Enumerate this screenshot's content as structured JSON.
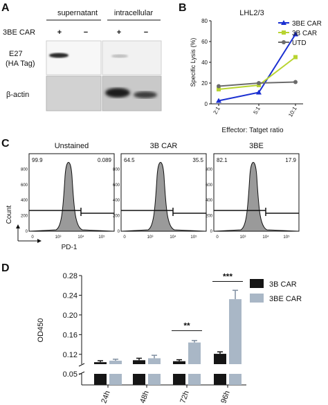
{
  "panels": {
    "a": {
      "letter": "A",
      "col_headers": [
        "supernatant",
        "intracellular"
      ],
      "row_label": "3BE CAR",
      "signs": [
        "+",
        "−",
        "+",
        "−"
      ],
      "blot1_label_line1": "E27",
      "blot1_label_line2": "(HA Tag)",
      "blot2_label": "β-actin"
    },
    "b": {
      "letter": "B"
    },
    "c": {
      "letter": "C"
    },
    "d": {
      "letter": "D"
    }
  },
  "chart_data": [
    {
      "type": "line",
      "title": "LHL2/3",
      "xlabel": "Effector: Tatget ratio",
      "ylabel": "Specific Lysis (%)",
      "categories": [
        "2:1",
        "5:1",
        "10:1"
      ],
      "ylim": [
        0,
        80
      ],
      "yticks": [
        0,
        20,
        40,
        60,
        80
      ],
      "legend_position": "top-right",
      "series": [
        {
          "name": "3BE CAR",
          "color": "#1a2fd1",
          "marker": "triangle",
          "values": [
            3,
            11,
            67
          ]
        },
        {
          "name": "3B CAR",
          "color": "#b8d430",
          "marker": "square",
          "values": [
            14,
            18,
            45
          ]
        },
        {
          "name": "UTD",
          "color": "#6b6b6b",
          "marker": "circle",
          "values": [
            17,
            20,
            21
          ]
        }
      ]
    },
    {
      "type": "histogram",
      "xlabel": "PD-1",
      "ylabel": "Count",
      "yticks": [
        0,
        200,
        400,
        600,
        800
      ],
      "xticks": [
        "0",
        "10³",
        "10⁴",
        "10⁵"
      ],
      "panels": [
        {
          "title": "Unstained",
          "left_pct": "99.9",
          "right_pct": "0.089"
        },
        {
          "title": "3B CAR",
          "left_pct": "64.5",
          "right_pct": "35.5"
        },
        {
          "title": "3BE",
          "left_pct": "82.1",
          "right_pct": "17.9"
        }
      ]
    },
    {
      "type": "bar",
      "ylabel": "OD450",
      "categories": [
        "24h",
        "48h",
        "72h",
        "96h"
      ],
      "yticks": [
        0.05,
        0.12,
        0.16,
        0.2,
        0.24,
        0.28
      ],
      "ylim_upper": [
        0.1,
        0.28
      ],
      "ylim_lower": [
        0,
        0.05
      ],
      "legend_position": "top-right",
      "series": [
        {
          "name": "3B CAR",
          "color": "#151515",
          "values": [
            0.104,
            0.108,
            0.106,
            0.121
          ],
          "errors": [
            0.003,
            0.004,
            0.003,
            0.004
          ]
        },
        {
          "name": "3BE CAR",
          "color": "#a9b7c6",
          "values": [
            0.107,
            0.112,
            0.144,
            0.232
          ],
          "errors": [
            0.003,
            0.006,
            0.004,
            0.018
          ]
        }
      ],
      "significance": [
        {
          "category": "72h",
          "label": "**"
        },
        {
          "category": "96h",
          "label": "***"
        }
      ]
    }
  ]
}
